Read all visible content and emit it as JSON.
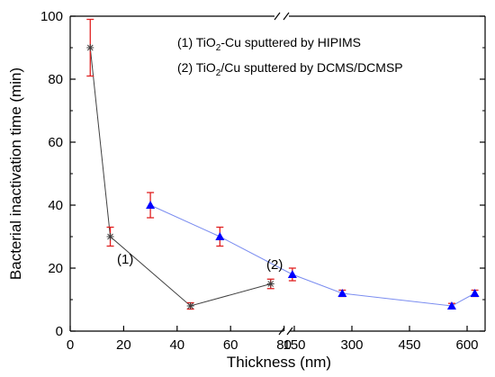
{
  "chart_data": {
    "type": "line",
    "xlabel": "Thickness (nm)",
    "ylabel": "Bacterial inactivation time (min)",
    "ylim": [
      0,
      100
    ],
    "grid": false,
    "axis_break": true,
    "x_ticks_left": [
      "0",
      "20",
      "40",
      "60",
      "80"
    ],
    "x_ticks_right": [
      "150",
      "300",
      "450",
      "600"
    ],
    "y_ticks": [
      "0",
      "20",
      "40",
      "60",
      "80",
      "100"
    ],
    "legend": {
      "placement": "top-right",
      "entries": [
        {
          "prefix": "(1) TiO",
          "sub": "2",
          "suffix": "-Cu sputtered by HIPIMS"
        },
        {
          "prefix": "(2) TiO",
          "sub": "2",
          "suffix": "/Cu sputtered by DCMS/DCMSP"
        }
      ]
    },
    "series": [
      {
        "marker": "star",
        "line_color": "#404040",
        "marker_color": "#404040",
        "error_color": "#e02020",
        "annotation": "(1)",
        "points": [
          {
            "x": 7.5,
            "y": 90,
            "err": 9
          },
          {
            "x": 15,
            "y": 30,
            "err": 3
          },
          {
            "x": 45,
            "y": 8,
            "err": 1
          },
          {
            "x": 75,
            "y": 15,
            "err": 1.5
          }
        ]
      },
      {
        "marker": "triangle",
        "line_color": "#7a8cf0",
        "marker_color": "#0000ff",
        "error_color": "#e02020",
        "annotation": "(2)",
        "points": [
          {
            "x": 30,
            "y": 40,
            "err": 4
          },
          {
            "x": 56,
            "y": 30,
            "err": 3
          },
          {
            "x": 145,
            "y": 18,
            "err": 2
          },
          {
            "x": 275,
            "y": 12,
            "err": 1
          },
          {
            "x": 560,
            "y": 8,
            "err": 0.8
          },
          {
            "x": 620,
            "y": 12,
            "err": 1
          }
        ]
      }
    ]
  }
}
